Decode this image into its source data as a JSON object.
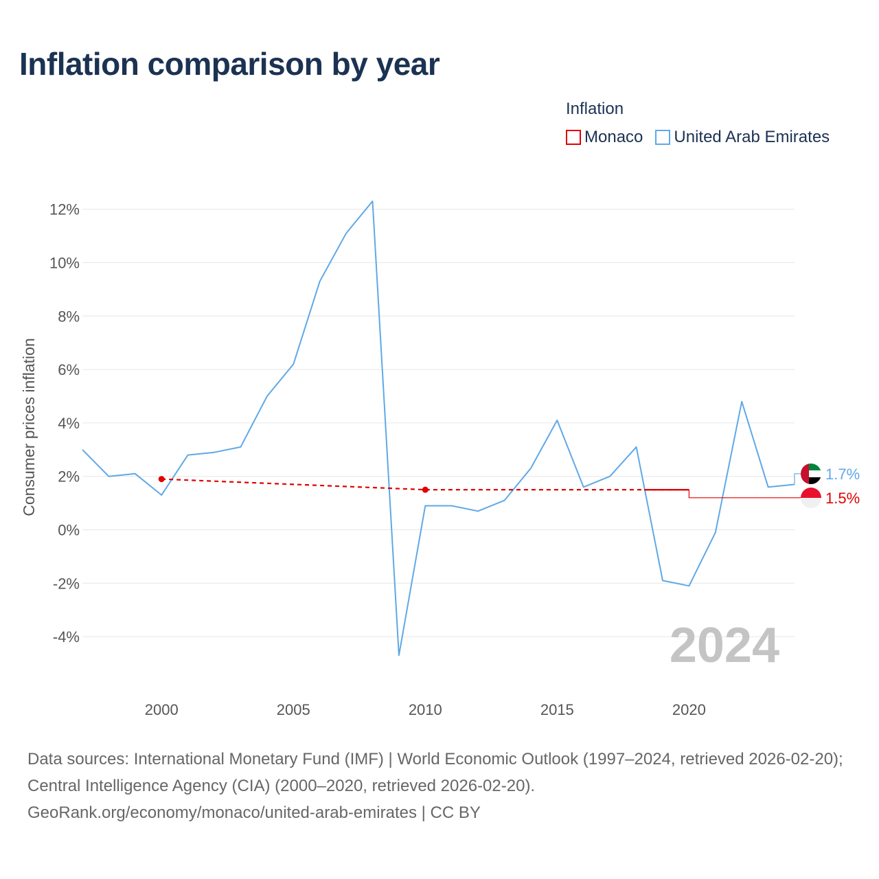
{
  "title": "Inflation comparison by year",
  "legend": {
    "title": "Inflation",
    "items": [
      {
        "label": "Monaco",
        "color": "#e00000"
      },
      {
        "label": "United Arab Emirates",
        "color": "#5fa8e6"
      }
    ]
  },
  "chart_data": {
    "type": "line",
    "title": "Inflation comparison by year",
    "xlabel": "",
    "ylabel": "Consumer prices inflation",
    "xlim": [
      1997,
      2024
    ],
    "ylim": [
      -6,
      13
    ],
    "y_ticks": [
      -4,
      -2,
      0,
      2,
      4,
      6,
      8,
      10,
      12
    ],
    "y_tick_labels": [
      "-4%",
      "-2%",
      "0%",
      "2%",
      "4%",
      "6%",
      "8%",
      "10%",
      "12%"
    ],
    "x_ticks": [
      2000,
      2005,
      2010,
      2015,
      2020
    ],
    "x_tick_labels": [
      "2000",
      "2005",
      "2010",
      "2015",
      "2020"
    ],
    "grid": true,
    "current_year": "2024",
    "series": [
      {
        "name": "United Arab Emirates",
        "color": "#5fa8e6",
        "style": "solid",
        "x": [
          1997,
          1998,
          1999,
          2000,
          2001,
          2002,
          2003,
          2004,
          2005,
          2006,
          2007,
          2008,
          2009,
          2010,
          2011,
          2012,
          2013,
          2014,
          2015,
          2016,
          2017,
          2018,
          2019,
          2020,
          2021,
          2022,
          2023,
          2024
        ],
        "values": [
          3.0,
          2.0,
          2.1,
          1.3,
          2.8,
          2.9,
          3.1,
          5.0,
          6.2,
          9.3,
          11.1,
          12.3,
          -4.7,
          0.9,
          0.9,
          0.7,
          1.1,
          2.3,
          4.1,
          1.6,
          2.0,
          3.1,
          -1.9,
          -2.1,
          -0.1,
          4.8,
          1.6,
          1.7
        ],
        "end_label": "1.7%"
      },
      {
        "name": "Monaco",
        "color": "#e00000",
        "style": "dashed",
        "x": [
          2000,
          2010,
          2020
        ],
        "values": [
          1.9,
          1.5,
          1.5
        ],
        "carry_forward": 1.2,
        "end_label": "1.5%"
      }
    ]
  },
  "footer": {
    "sources": "Data sources: International Monetary Fund (IMF) | World Economic Outlook (1997–2024, retrieved 2026-02-20); Central Intelligence Agency (CIA) (2000–2020, retrieved 2026-02-20).",
    "link": "GeoRank.org/economy/monaco/united-arab-emirates | CC BY"
  }
}
